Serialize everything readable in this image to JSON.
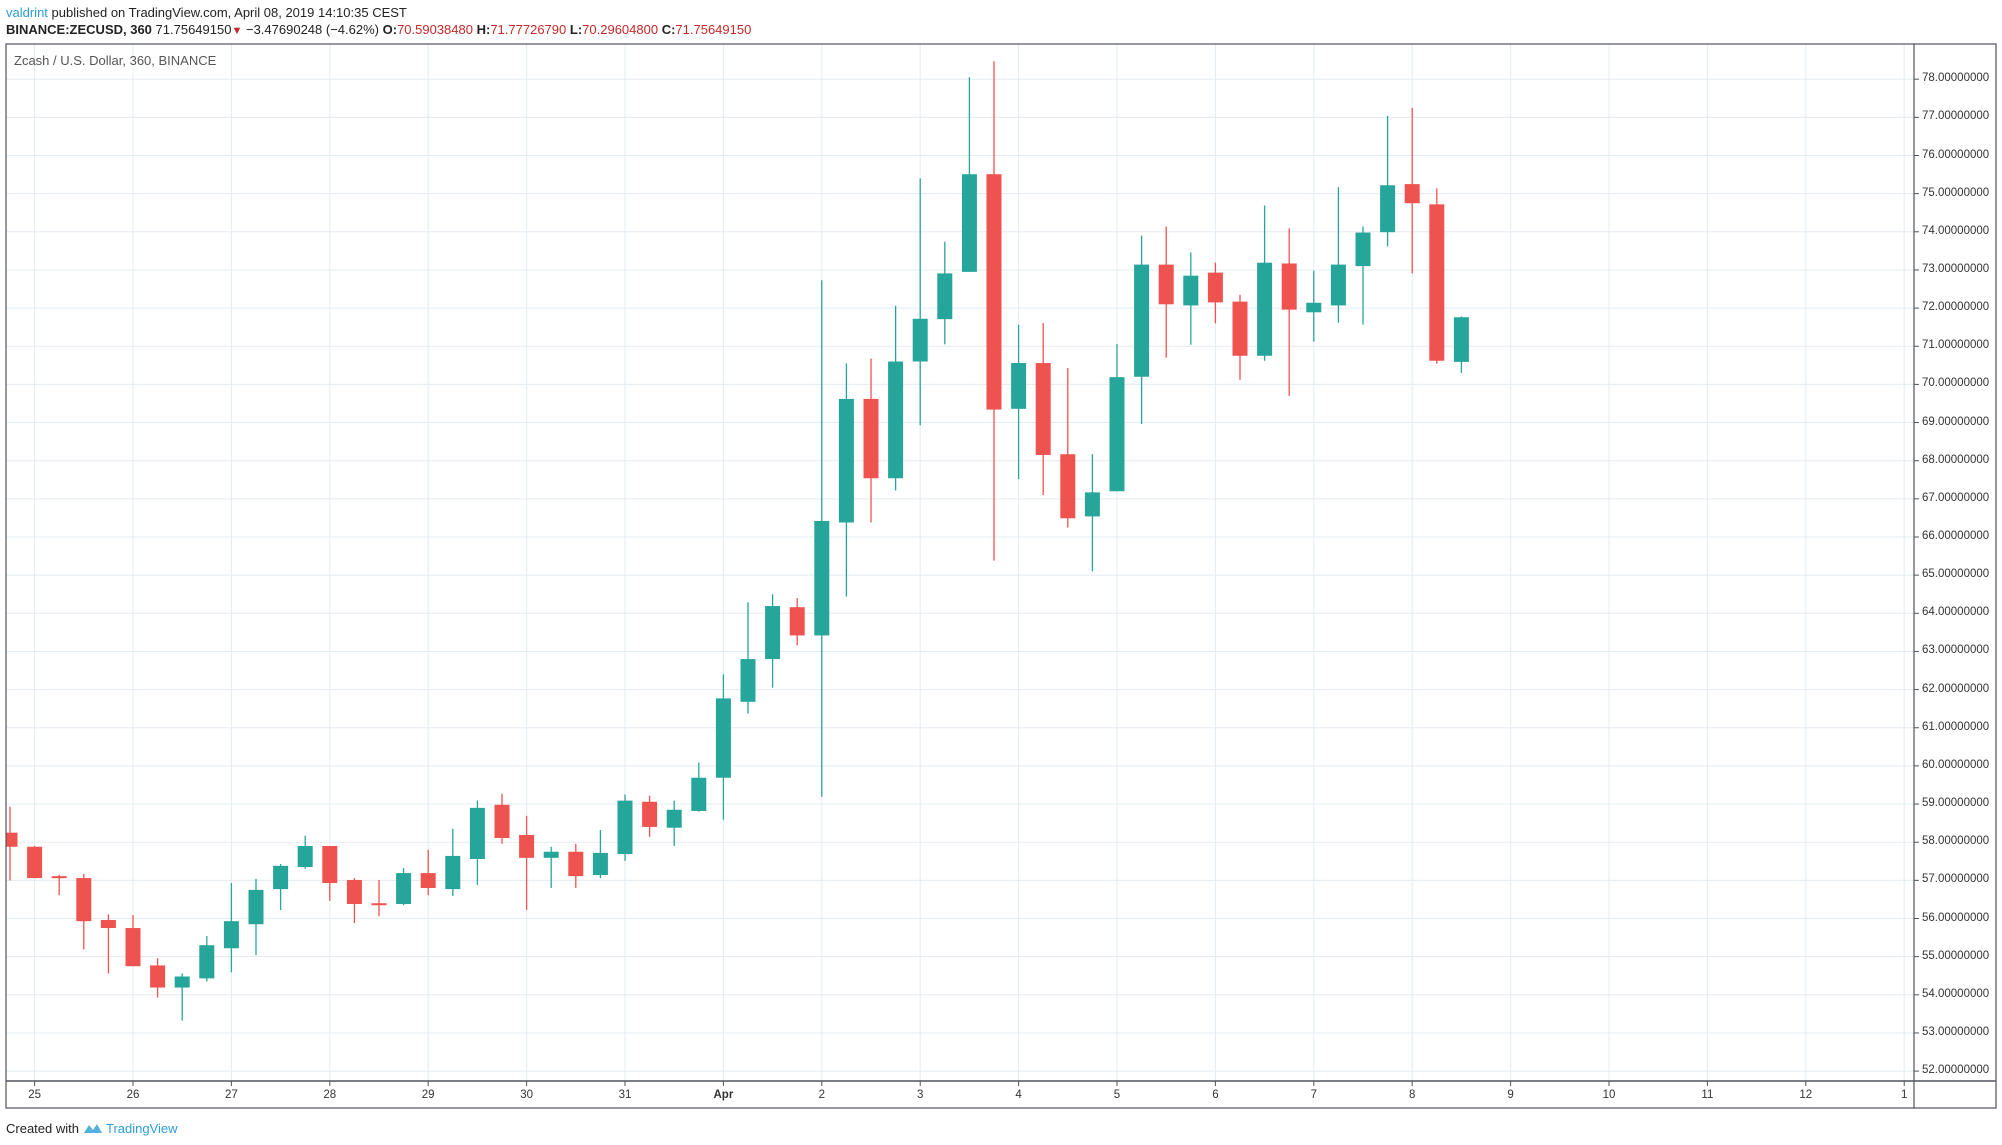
{
  "header": {
    "user": "valdrint",
    "published": "published on TradingView.com, April 08, 2019 14:10:35 CEST",
    "symbol": "BINANCE:ZECUSD, 360",
    "last": "71.75649150",
    "change": "−3.47690248 (−4.62%)",
    "o_label": "O:",
    "o": "70.59038480",
    "h_label": "H:",
    "h": "71.77726790",
    "l_label": "L:",
    "l": "70.29604800",
    "c_label": "C:",
    "c": "71.75649150",
    "direction_icon": "triangle-down"
  },
  "footer": {
    "created": "Created with",
    "brand": "TradingView"
  },
  "colors": {
    "up": "#26a69a",
    "down": "#ef5350",
    "grid": "#e3ecf3",
    "accent": "#2a9fd8"
  },
  "chart_data": {
    "type": "candlestick",
    "title": "Zcash / U.S. Dollar, 360, BINANCE",
    "interval_minutes": 360,
    "ylim": [
      52,
      78
    ],
    "grid": true,
    "y_ticks": [
      "52.00000000",
      "53.00000000",
      "54.00000000",
      "55.00000000",
      "56.00000000",
      "57.00000000",
      "58.00000000",
      "59.00000000",
      "60.00000000",
      "61.00000000",
      "62.00000000",
      "63.00000000",
      "64.00000000",
      "65.00000000",
      "66.00000000",
      "67.00000000",
      "68.00000000",
      "69.00000000",
      "70.00000000",
      "71.00000000",
      "72.00000000",
      "73.00000000",
      "74.00000000",
      "75.00000000",
      "76.00000000",
      "77.00000000",
      "78.00000000"
    ],
    "x_ticks": [
      "25",
      "26",
      "27",
      "28",
      "29",
      "30",
      "31",
      "Apr",
      "2",
      "3",
      "4",
      "5",
      "6",
      "7",
      "8",
      "9",
      "10",
      "11",
      "12",
      "1"
    ],
    "candles": [
      [
        58.25,
        58.93,
        57.0,
        57.88
      ],
      [
        57.88,
        57.9,
        57.06,
        57.06
      ],
      [
        57.11,
        57.14,
        56.61,
        57.06
      ],
      [
        57.06,
        57.17,
        55.19,
        55.93
      ],
      [
        55.96,
        56.11,
        54.56,
        55.75
      ],
      [
        55.75,
        56.09,
        54.75,
        54.75
      ],
      [
        54.77,
        54.96,
        53.93,
        54.19
      ],
      [
        54.19,
        54.56,
        53.32,
        54.48
      ],
      [
        54.43,
        55.54,
        54.35,
        55.3
      ],
      [
        55.22,
        56.93,
        54.59,
        55.93
      ],
      [
        55.85,
        57.04,
        55.04,
        56.75
      ],
      [
        56.77,
        57.43,
        56.22,
        57.38
      ],
      [
        57.35,
        58.17,
        57.3,
        57.9
      ],
      [
        57.9,
        57.9,
        56.46,
        56.93
      ],
      [
        57.01,
        57.06,
        55.88,
        56.38
      ],
      [
        56.4,
        57.01,
        56.06,
        56.35
      ],
      [
        56.38,
        57.32,
        56.35,
        57.19
      ],
      [
        57.19,
        57.8,
        56.61,
        56.8
      ],
      [
        56.77,
        58.35,
        56.59,
        57.64
      ],
      [
        57.56,
        59.09,
        56.88,
        58.9
      ],
      [
        58.98,
        59.27,
        57.96,
        58.11
      ],
      [
        58.19,
        58.69,
        56.22,
        57.59
      ],
      [
        57.59,
        57.88,
        56.8,
        57.75
      ],
      [
        57.75,
        57.96,
        56.8,
        57.11
      ],
      [
        57.14,
        58.32,
        57.06,
        57.72
      ],
      [
        57.69,
        59.25,
        57.51,
        59.09
      ],
      [
        59.06,
        59.22,
        58.14,
        58.4
      ],
      [
        58.38,
        59.09,
        57.9,
        58.85
      ],
      [
        58.82,
        60.09,
        58.8,
        59.69
      ],
      [
        59.69,
        62.4,
        58.59,
        61.77
      ],
      [
        61.68,
        64.29,
        61.37,
        62.8
      ],
      [
        62.8,
        64.5,
        62.05,
        64.19
      ],
      [
        64.16,
        64.4,
        63.16,
        63.42
      ],
      [
        63.42,
        72.73,
        59.19,
        66.42
      ],
      [
        66.38,
        70.55,
        64.44,
        69.62
      ],
      [
        69.62,
        70.68,
        66.38,
        67.54
      ],
      [
        67.54,
        72.06,
        67.22,
        70.6
      ],
      [
        70.6,
        75.4,
        68.93,
        71.72
      ],
      [
        71.71,
        73.74,
        71.05,
        72.91
      ],
      [
        72.95,
        78.05,
        72.95,
        75.51
      ],
      [
        75.51,
        78.47,
        65.38,
        69.34
      ],
      [
        69.36,
        71.56,
        67.52,
        70.56
      ],
      [
        70.56,
        71.61,
        67.1,
        68.15
      ],
      [
        68.17,
        70.43,
        66.25,
        66.49
      ],
      [
        66.54,
        68.17,
        65.1,
        67.17
      ],
      [
        67.2,
        71.06,
        67.2,
        70.19
      ],
      [
        70.2,
        73.9,
        68.96,
        73.14
      ],
      [
        73.14,
        74.14,
        70.7,
        72.1
      ],
      [
        72.07,
        73.46,
        71.04,
        72.85
      ],
      [
        72.93,
        73.19,
        71.6,
        72.15
      ],
      [
        72.17,
        72.35,
        70.12,
        70.75
      ],
      [
        70.75,
        74.69,
        70.62,
        73.19
      ],
      [
        73.17,
        74.09,
        69.7,
        71.96
      ],
      [
        71.89,
        72.98,
        71.12,
        72.14
      ],
      [
        72.07,
        75.17,
        71.62,
        73.14
      ],
      [
        73.1,
        74.14,
        71.57,
        73.98
      ],
      [
        73.99,
        77.04,
        73.62,
        75.22
      ],
      [
        75.25,
        77.25,
        72.91,
        74.75
      ],
      [
        74.72,
        75.14,
        70.54,
        70.62
      ],
      [
        70.59,
        71.78,
        70.3,
        71.76
      ]
    ]
  }
}
